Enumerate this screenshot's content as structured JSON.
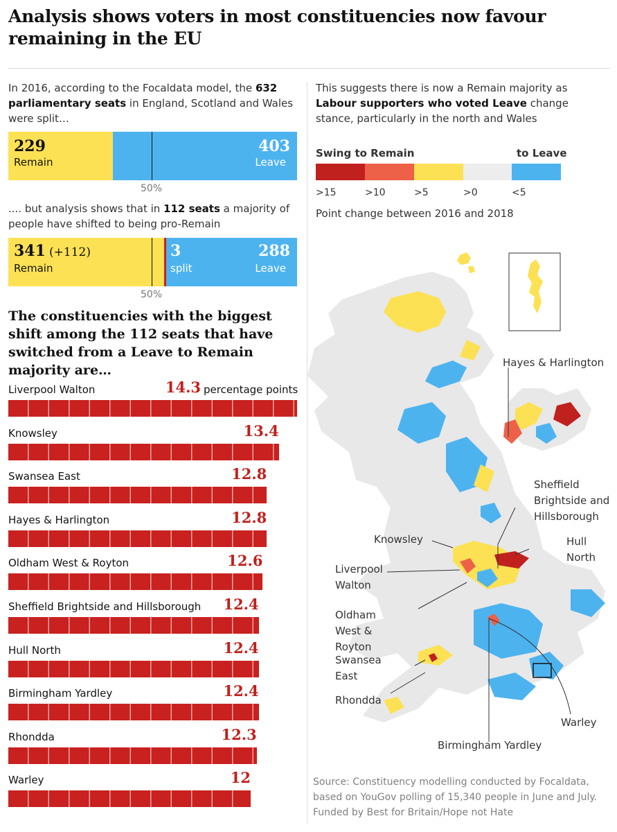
{
  "title": "Analysis shows voters in most constituencies now favour remaining in the EU",
  "intro": {
    "p1_a": "In 2016, according to the Focaldata model, the ",
    "p1_b": "632 parliamentary seats",
    "p1_c": " in England, Scotland and Wales were split…",
    "p2_a": ".... but analysis shows that in ",
    "p2_b": "112 seats",
    "p2_c": " a majority of people have shifted to being pro-Remain"
  },
  "right_intro": {
    "a": "This suggests there is now a Remain majority as ",
    "b": "Labour supporters who voted Leave",
    "c": " change stance, particularly in the north and Wales"
  },
  "split2016": {
    "remain_value": "229",
    "remain_label": "Remain",
    "leave_value": "403",
    "leave_label": "Leave",
    "midline_label": "50%"
  },
  "split2018": {
    "remain_value": "341",
    "remain_change": "(+112)",
    "remain_label": "Remain",
    "split_value": "3",
    "split_label": "split",
    "leave_value": "288",
    "leave_label": "Leave",
    "midline_label": "50%"
  },
  "subheading": "The constituencies with the biggest shift among the 112 seats that have switched from a Leave to Remain majority are…",
  "legend": {
    "left_title": "Swing to Remain",
    "right_title": "to Leave",
    "ticks": [
      ">15",
      ">10",
      ">5",
      ">0",
      "<5"
    ],
    "note": "Point change between 2016 and 2018",
    "colors": [
      "#c0211e",
      "#ee6149",
      "#fce154",
      "#ededed",
      "#4db3ef"
    ]
  },
  "map_labels": {
    "hayes": "Hayes & Harlington",
    "sheffield": "Sheffield Brightside and Hillsborough",
    "knowsley": "Knowsley",
    "hull": "Hull North",
    "liverpool": "Liverpool Walton",
    "oldham": "Oldham West & Royton",
    "swansea": "Swansea East",
    "rhondda": "Rhondda",
    "warley": "Warley",
    "birmingham": "Birmingham Yardley"
  },
  "source": "Source: Constituency modelling conducted by Focaldata, based on YouGov polling of 15,340 people in June and July. Funded by Best for Britain/Hope not Hate",
  "colors": {
    "remain": "#fce154",
    "leave": "#4db3ef",
    "swing": "#c8211f",
    "value_text": "#c0211e"
  },
  "chart_data": [
    {
      "type": "bar",
      "title": "2016",
      "categories": [
        "Remain",
        "Leave"
      ],
      "values": [
        229,
        403
      ],
      "total": 632
    },
    {
      "type": "bar",
      "title": "2018",
      "categories": [
        "Remain",
        "split",
        "Leave"
      ],
      "values": [
        341,
        3,
        288
      ],
      "annotation": "(+112)"
    },
    {
      "type": "bar",
      "unit": "percentage points",
      "categories": [
        "Liverpool Walton",
        "Knowsley",
        "Swansea East",
        "Hayes & Harlington",
        "Oldham West & Royton",
        "Sheffield Brightside and Hillsborough",
        "Hull North",
        "Birmingham Yardley",
        "Rhondda",
        "Warley"
      ],
      "values": [
        14.3,
        13.4,
        12.8,
        12.8,
        12.6,
        12.4,
        12.4,
        12.4,
        12.3,
        12
      ],
      "labels": [
        "14.3",
        "13.4",
        "12.8",
        "12.8",
        "12.6",
        "12.4",
        "12.4",
        "12.4",
        "12.3",
        "12"
      ]
    }
  ]
}
